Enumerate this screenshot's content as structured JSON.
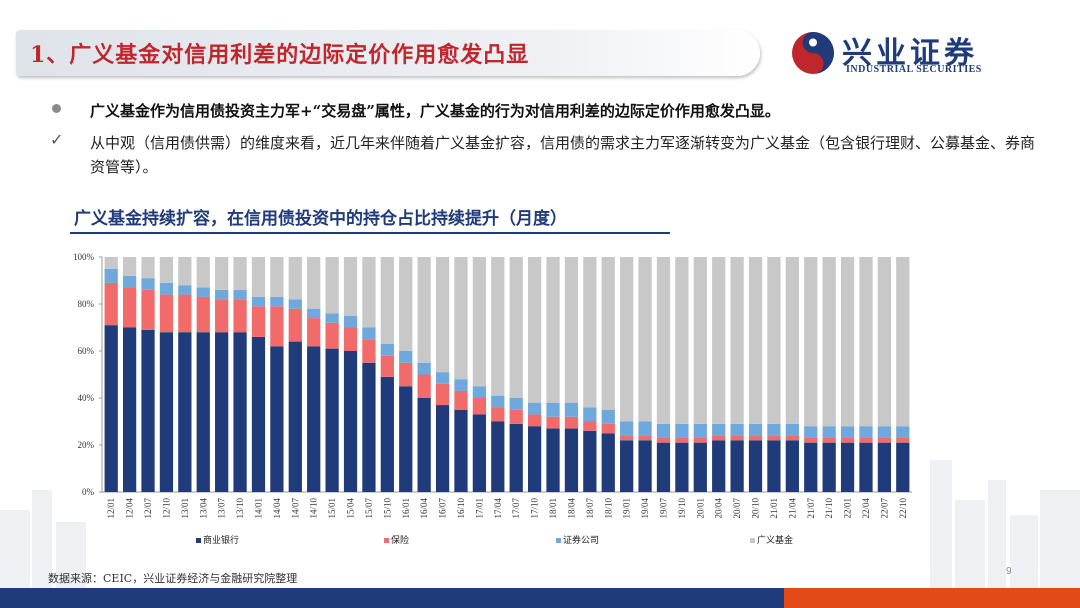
{
  "header": {
    "title": "1、广义基金对信用利差的边际定价作用愈发凸显",
    "logo_cn": "兴业证券",
    "logo_en": "INDUSTRIAL SECURITIES"
  },
  "bullets": {
    "main": "广义基金作为信用债投资主力军+“交易盘”属性，广义基金的行为对信用利差的边际定价作用愈发凸显。",
    "sub": "从中观（信用债供需）的维度来看，近几年来伴随着广义基金扩容，信用债的需求主力军逐渐转变为广义基金（包含银行理财、公募基金、券商资管等）。"
  },
  "chart_title": "广义基金持续扩容，在信用债投资中的持仓占比持续提升（月度）",
  "footer": {
    "source": "数据来源：CEIC，兴业证券经济与金融研究院整理",
    "page": "9"
  },
  "chart_data": {
    "type": "bar",
    "stacked": true,
    "ylim": [
      0,
      100
    ],
    "yticks": [
      "0%",
      "20%",
      "40%",
      "60%",
      "80%",
      "100%"
    ],
    "tick_labels": [
      "12/01",
      "12/04",
      "12/07",
      "12/10",
      "13/01",
      "13/04",
      "13/07",
      "13/10",
      "14/01",
      "14/04",
      "14/07",
      "14/10",
      "15/01",
      "15/04",
      "15/07",
      "15/10",
      "16/01",
      "16/04",
      "16/07",
      "16/10",
      "17/01",
      "17/04",
      "17/07",
      "17/10",
      "18/01",
      "18/04",
      "18/07",
      "18/10",
      "19/01",
      "19/04",
      "19/07",
      "19/10",
      "20/01",
      "20/04",
      "20/07",
      "20/10",
      "21/01",
      "21/04",
      "21/07",
      "21/10",
      "22/01",
      "22/04",
      "22/07",
      "22/10"
    ],
    "legend_position": "bottom",
    "colors": {
      "bank": "#1f3b7a",
      "insurance": "#f26b6b",
      "broker": "#6fa8dc",
      "fund": "#c8c8c8"
    },
    "series": [
      {
        "name": "商业银行",
        "key": "bank",
        "values": [
          71,
          70,
          69,
          68,
          68,
          68,
          68,
          68,
          66,
          62,
          64,
          62,
          61,
          60,
          55,
          49,
          45,
          40,
          37,
          35,
          33,
          30,
          29,
          28,
          27,
          27,
          26,
          25,
          22,
          22,
          21,
          21,
          21,
          22,
          22,
          22,
          22,
          22,
          21,
          21,
          21,
          21,
          21,
          21
        ]
      },
      {
        "name": "保险",
        "key": "insurance",
        "values": [
          18,
          17,
          17,
          16,
          16,
          15,
          14,
          14,
          13,
          17,
          14,
          12,
          11,
          10,
          10,
          9,
          10,
          10,
          9,
          8,
          7,
          6,
          6,
          5,
          5,
          5,
          4,
          4,
          2,
          2,
          2,
          2,
          2,
          2,
          2,
          2,
          2,
          2,
          2,
          2,
          2,
          2,
          2,
          2
        ]
      },
      {
        "name": "证券公司",
        "key": "broker",
        "values": [
          6,
          5,
          5,
          5,
          4,
          4,
          4,
          4,
          4,
          4,
          4,
          4,
          4,
          5,
          5,
          5,
          5,
          5,
          5,
          5,
          5,
          5,
          5,
          5,
          6,
          6,
          6,
          6,
          6,
          6,
          6,
          6,
          6,
          5,
          5,
          5,
          5,
          5,
          5,
          5,
          5,
          5,
          5,
          5
        ]
      },
      {
        "name": "广义基金",
        "key": "fund",
        "values": [
          5,
          8,
          9,
          11,
          12,
          13,
          14,
          14,
          17,
          17,
          18,
          22,
          24,
          25,
          30,
          37,
          40,
          45,
          49,
          52,
          55,
          59,
          60,
          62,
          62,
          62,
          64,
          65,
          70,
          70,
          71,
          71,
          71,
          71,
          71,
          71,
          71,
          71,
          72,
          72,
          72,
          72,
          72,
          72
        ]
      }
    ]
  }
}
